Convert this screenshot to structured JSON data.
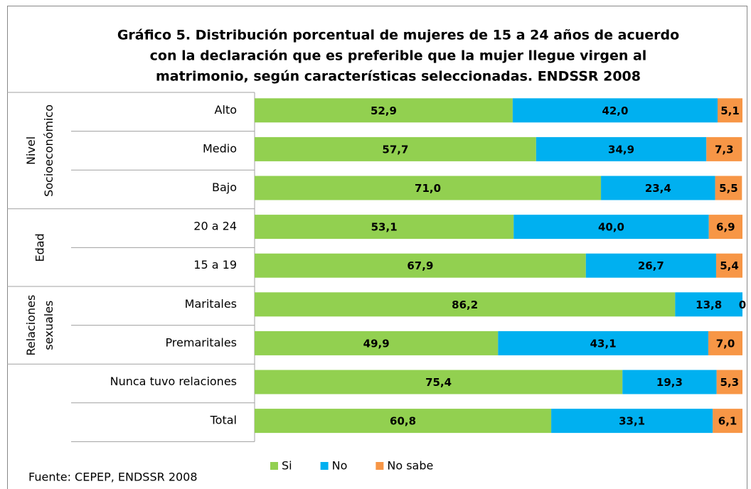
{
  "chart_data": {
    "type": "bar_stacked_horizontal",
    "title": [
      "Gráfico 5. Distribución porcentual de mujeres de 15 a 24 años de acuerdo",
      "con la declaración que es preferible que la mujer llegue virgen al",
      "matrimonio, según características seleccionadas. ENDSSR 2008"
    ],
    "categories": [
      "Alto",
      "Medio",
      "Bajo",
      "20 a 24",
      "15 a 19",
      "Maritales",
      "Premaritales",
      "Nunca tuvo relaciones",
      "Total"
    ],
    "category_groups": [
      {
        "label": [
          "Nivel",
          "Socioeconómico"
        ],
        "size": 3
      },
      {
        "label": [
          "Edad"
        ],
        "size": 2
      },
      {
        "label": [
          "Relaciones",
          "sexuales"
        ],
        "size": 2
      },
      {
        "label": [],
        "size": 1
      },
      {
        "label": [],
        "size": 1
      }
    ],
    "series": [
      {
        "name": "Si",
        "color": "#92d050",
        "values": [
          52.9,
          57.7,
          71.0,
          53.1,
          67.9,
          86.2,
          49.9,
          75.4,
          60.8
        ],
        "value_labels": [
          "52,9",
          "57,7",
          "71,0",
          "53,1",
          "67,9",
          "86,2",
          "49,9",
          "75,4",
          "60,8"
        ]
      },
      {
        "name": "No",
        "color": "#00b0f0",
        "values": [
          42.0,
          34.9,
          23.4,
          40.0,
          26.7,
          13.8,
          43.1,
          19.3,
          33.1
        ],
        "value_labels": [
          "42,0",
          "34,9",
          "23,4",
          "40,0",
          "26,7",
          "13,8",
          "43,1",
          "19,3",
          "33,1"
        ]
      },
      {
        "name": "No sabe",
        "color": "#f79646",
        "values": [
          5.1,
          7.3,
          5.5,
          6.9,
          5.4,
          0,
          7.0,
          5.3,
          6.1
        ],
        "value_labels": [
          "5,1",
          "7,3",
          "5,5",
          "6,9",
          "5,4",
          "0",
          "7,0",
          "5,3",
          "6,1"
        ]
      }
    ],
    "xlim": [
      0,
      100
    ],
    "source": "Fuente: CEPEP, ENDSSR 2008"
  }
}
